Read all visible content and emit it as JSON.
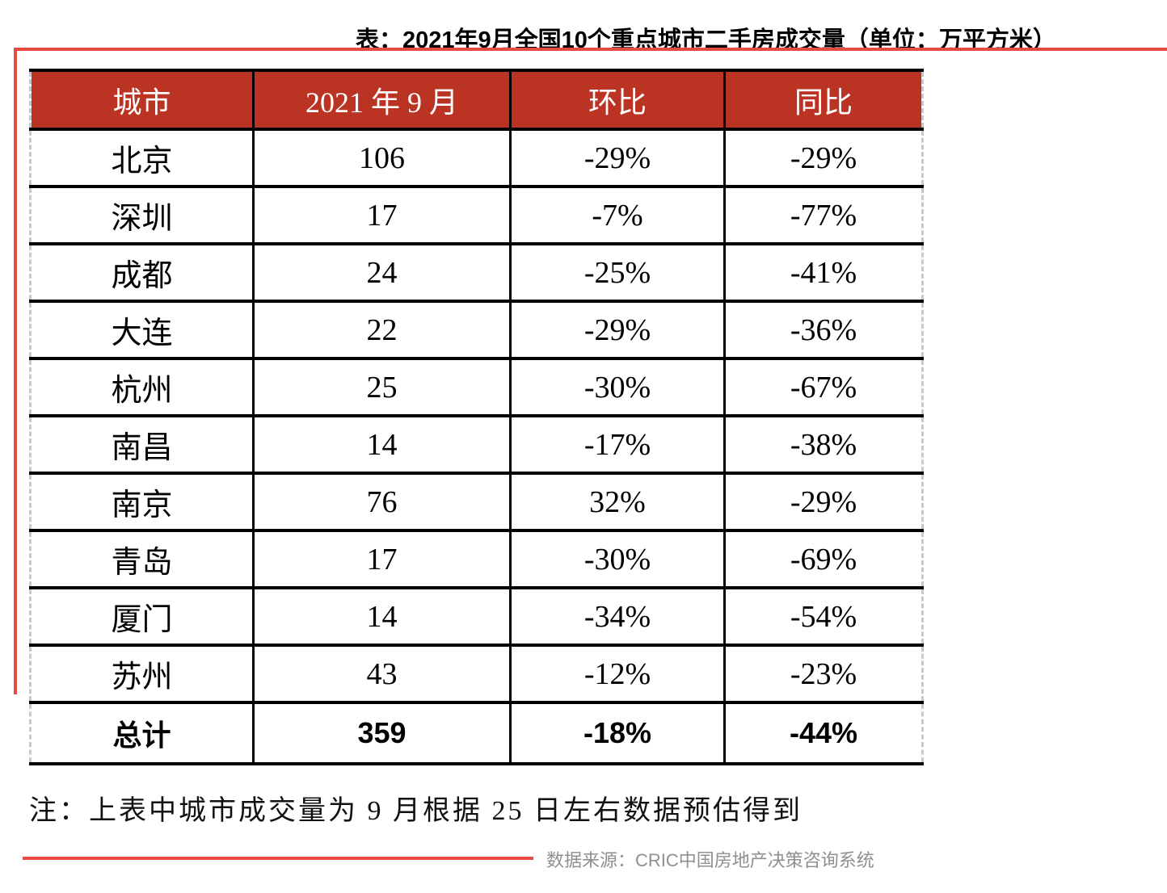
{
  "title": "表：2021年9月全国10个重点城市二手房成交量（单位：万平方米）",
  "table": {
    "headers": [
      "城市",
      "2021 年 9 月",
      "环比",
      "同比"
    ],
    "rows": [
      {
        "city": "北京",
        "volume": "106",
        "mom": "-29%",
        "yoy": "-29%"
      },
      {
        "city": "深圳",
        "volume": "17",
        "mom": "-7%",
        "yoy": "-77%"
      },
      {
        "city": "成都",
        "volume": "24",
        "mom": "-25%",
        "yoy": "-41%"
      },
      {
        "city": "大连",
        "volume": "22",
        "mom": "-29%",
        "yoy": "-36%"
      },
      {
        "city": "杭州",
        "volume": "25",
        "mom": "-30%",
        "yoy": "-67%"
      },
      {
        "city": "南昌",
        "volume": "14",
        "mom": "-17%",
        "yoy": "-38%"
      },
      {
        "city": "南京",
        "volume": "76",
        "mom": "32%",
        "yoy": "-29%"
      },
      {
        "city": "青岛",
        "volume": "17",
        "mom": "-30%",
        "yoy": "-69%"
      },
      {
        "city": "厦门",
        "volume": "14",
        "mom": "-34%",
        "yoy": "-54%"
      },
      {
        "city": "苏州",
        "volume": "43",
        "mom": "-12%",
        "yoy": "-23%"
      }
    ],
    "total": {
      "city": "总计",
      "volume": "359",
      "mom": "-18%",
      "yoy": "-44%"
    }
  },
  "note": "注：上表中城市成交量为 9 月根据 25 日左右数据预估得到",
  "source": "数据来源：CRIC中国房地产决策咨询系统",
  "colors": {
    "header_bg": "#BB3323",
    "accent_line": "#E84A3F",
    "table_border": "#000000",
    "dashed_border": "#C8C8C8",
    "source_text": "#8F8F8F"
  }
}
